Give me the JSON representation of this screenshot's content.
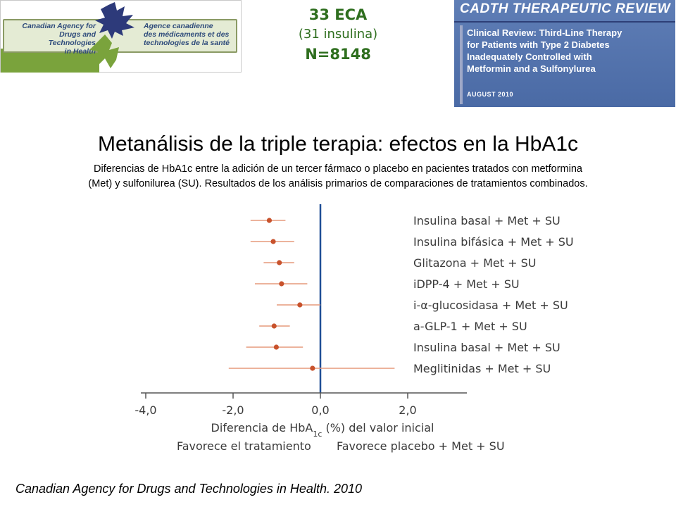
{
  "logo": {
    "english": "Canadian Agency for\nDrugs and Technologies\nin Health",
    "french": "Agence canadienne\ndes médicaments et des\ntechnologies de la santé"
  },
  "header": {
    "line1": "33 ECA",
    "line2": "(31 insulina)",
    "line3": "N=8148"
  },
  "cover": {
    "title": "CADTH THERAPEUTIC REVIEW",
    "body": "Clinical Review: Third-Line Therapy\nfor Patients with Type 2 Diabetes\nInadequately Controlled with\nMetformin and a Sulfonylurea",
    "date": "AUGUST 2010"
  },
  "title": "Metanálisis de la triple terapia: efectos en la HbA1c",
  "subtitle_line1": "Diferencias de HbA1c entre la adición de un tercer fármaco o placebo en pacientes tratados con metformina",
  "subtitle_line2": "(Met) y sulfonilurea (SU). Resultados de los análisis primarios de comparaciones de tratamientos combinados.",
  "chart_data": {
    "type": "forest",
    "categories": [
      "Insulina basal + Met + SU",
      "Insulina bifásica + Met + SU",
      "Glitazona + Met + SU",
      "iDPP-4 + Met + SU",
      "i-α-glucosidasa + Met + SU",
      "a-GLP-1 + Met + SU",
      "Insulina basal + Met + SU",
      "Meglitinidas + Met + SU"
    ],
    "estimates": [
      -1.17,
      -1.08,
      -0.94,
      -0.89,
      -0.47,
      -1.06,
      -1.01,
      -0.18
    ],
    "ci_lower": [
      -1.6,
      -1.6,
      -1.3,
      -1.5,
      -1.0,
      -1.4,
      -1.7,
      -2.1
    ],
    "ci_upper": [
      -0.8,
      -0.6,
      -0.6,
      -0.3,
      0.0,
      -0.7,
      -0.4,
      1.7
    ],
    "xlim": [
      -4.0,
      3.3
    ],
    "xticks": [
      "-4,0",
      "-2,0",
      "0,0",
      "2,0"
    ],
    "xtick_values": [
      -4,
      -2,
      0,
      2
    ],
    "xlabel_prefix": "Diferencia de HbA",
    "xlabel_sub": "1c",
    "xlabel_suffix": " (%) del valor inicial",
    "left_note": "Favorece el tratamiento",
    "right_note": "Favorece placebo + Met + SU",
    "colors": {
      "point": "#c8522c",
      "ci": "#e59a7c",
      "zero_line": "#1f4e96",
      "axis": "#555555"
    }
  },
  "footer": "Canadian Agency for Drugs and Technologies in Health. 2010"
}
